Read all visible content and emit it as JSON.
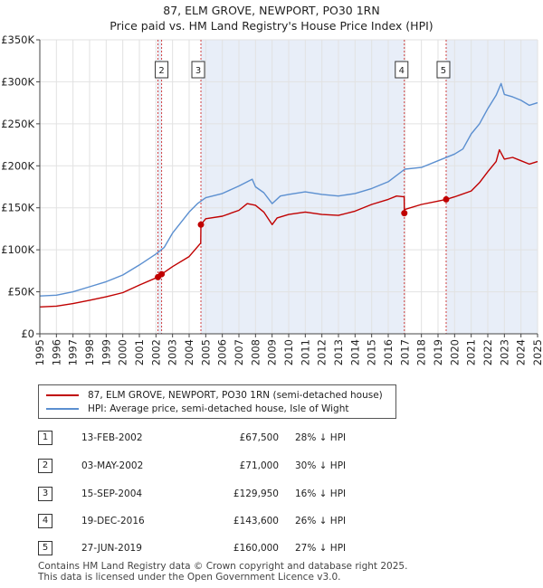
{
  "title_line1": "87, ELM GROVE, NEWPORT, PO30 1RN",
  "title_line2": "Price paid vs. HM Land Registry's House Price Index (HPI)",
  "legend": {
    "property_label": "87, ELM GROVE, NEWPORT, PO30 1RN (semi-detached house)",
    "hpi_label": "HPI: Average price, semi-detached house, Isle of Wight"
  },
  "colors": {
    "property": "#c00000",
    "hpi": "#5b8fd0",
    "shade": "#e8eef8",
    "marker_line": "#d04040"
  },
  "sales": [
    {
      "num": "1",
      "date": "13-FEB-2002",
      "price": "£67,500",
      "hpi": "28% ↓ HPI"
    },
    {
      "num": "2",
      "date": "03-MAY-2002",
      "price": "£71,000",
      "hpi": "30% ↓ HPI"
    },
    {
      "num": "3",
      "date": "15-SEP-2004",
      "price": "£129,950",
      "hpi": "16% ↓ HPI"
    },
    {
      "num": "4",
      "date": "19-DEC-2016",
      "price": "£143,600",
      "hpi": "26% ↓ HPI"
    },
    {
      "num": "5",
      "date": "27-JUN-2019",
      "price": "£160,000",
      "hpi": "27% ↓ HPI"
    }
  ],
  "footer": {
    "line1": "Contains HM Land Registry data © Crown copyright and database right 2025.",
    "line2": "This data is licensed under the Open Government Licence v3.0."
  },
  "chart_data": {
    "type": "line",
    "title": "87, ELM GROVE, NEWPORT, PO30 1RN — Price paid vs. HM Land Registry's House Price Index (HPI)",
    "xlabel": "",
    "ylabel": "",
    "xlim": [
      1995,
      2025
    ],
    "ylim": [
      0,
      350000
    ],
    "x_ticks": [
      "1995",
      "1996",
      "1997",
      "1998",
      "1999",
      "2000",
      "2001",
      "2002",
      "2003",
      "2004",
      "2005",
      "2006",
      "2007",
      "2008",
      "2009",
      "2010",
      "2011",
      "2012",
      "2013",
      "2014",
      "2015",
      "2016",
      "2017",
      "2018",
      "2019",
      "2020",
      "2021",
      "2022",
      "2023",
      "2024",
      "2025"
    ],
    "y_ticks": [
      {
        "value": 0,
        "label": "£0"
      },
      {
        "value": 50000,
        "label": "£50K"
      },
      {
        "value": 100000,
        "label": "£100K"
      },
      {
        "value": 150000,
        "label": "£150K"
      },
      {
        "value": 200000,
        "label": "£200K"
      },
      {
        "value": 250000,
        "label": "£250K"
      },
      {
        "value": 300000,
        "label": "£300K"
      },
      {
        "value": 350000,
        "label": "£350K"
      }
    ],
    "grid": true,
    "shaded_periods": [
      [
        2002.12,
        2002.34
      ],
      [
        2004.71,
        2016.97
      ],
      [
        2019.49,
        2025.0
      ]
    ],
    "series": [
      {
        "name": "87, ELM GROVE, NEWPORT, PO30 1RN (semi-detached house)",
        "color": "#c00000",
        "x": [
          1995,
          1996,
          1997,
          1998,
          1999,
          2000,
          2001,
          2002.12,
          2002.34,
          2003,
          2004,
          2004.7,
          2004.71,
          2005,
          2006,
          2007,
          2007.5,
          2008,
          2008.5,
          2009,
          2009.3,
          2010,
          2011,
          2012,
          2013,
          2014,
          2015,
          2016,
          2016.5,
          2016.96,
          2016.97,
          2017,
          2018,
          2019,
          2019.49,
          2020,
          2021,
          2021.5,
          2022,
          2022.5,
          2022.7,
          2023,
          2023.5,
          2024,
          2024.5,
          2025
        ],
        "values": [
          32000,
          33000,
          36000,
          40000,
          44000,
          49000,
          58000,
          67500,
          71000,
          80000,
          92000,
          108000,
          129950,
          137000,
          140000,
          147000,
          155000,
          153000,
          145000,
          130000,
          138000,
          142000,
          145000,
          142000,
          141000,
          146000,
          154000,
          160000,
          164000,
          163000,
          143600,
          148000,
          154000,
          158000,
          160000,
          163000,
          170000,
          180000,
          193000,
          205000,
          219000,
          208000,
          210000,
          206000,
          202000,
          205000
        ]
      },
      {
        "name": "HPI: Average price, semi-detached house, Isle of Wight",
        "color": "#5b8fd0",
        "x": [
          1995,
          1996,
          1997,
          1998,
          1999,
          2000,
          2001,
          2002,
          2002.5,
          2003,
          2004,
          2004.5,
          2005,
          2006,
          2007,
          2007.8,
          2008,
          2008.5,
          2009,
          2009.5,
          2010,
          2011,
          2012,
          2013,
          2014,
          2015,
          2016,
          2017,
          2018,
          2019,
          2020,
          2020.5,
          2021,
          2021.5,
          2022,
          2022.5,
          2022.8,
          2023,
          2023.5,
          2024,
          2024.5,
          2025
        ],
        "values": [
          45000,
          46000,
          50000,
          56000,
          62000,
          70000,
          82000,
          95000,
          103000,
          120000,
          145000,
          155000,
          162000,
          167000,
          176000,
          184000,
          175000,
          168000,
          155000,
          164000,
          166000,
          169000,
          166000,
          164000,
          167000,
          173000,
          181000,
          196000,
          198000,
          206000,
          214000,
          220000,
          238000,
          250000,
          268000,
          284000,
          298000,
          285000,
          282000,
          278000,
          272000,
          275000
        ]
      }
    ],
    "sale_markers": [
      {
        "label": "1",
        "x": 2002.12,
        "value": 67500
      },
      {
        "label": "2",
        "x": 2002.34,
        "value": 71000
      },
      {
        "label": "3",
        "x": 2004.71,
        "value": 129950
      },
      {
        "label": "4",
        "x": 2016.97,
        "value": 143600
      },
      {
        "label": "5",
        "x": 2019.49,
        "value": 160000
      }
    ],
    "marker_boxes": [
      "2",
      "3",
      "4",
      "5"
    ]
  }
}
